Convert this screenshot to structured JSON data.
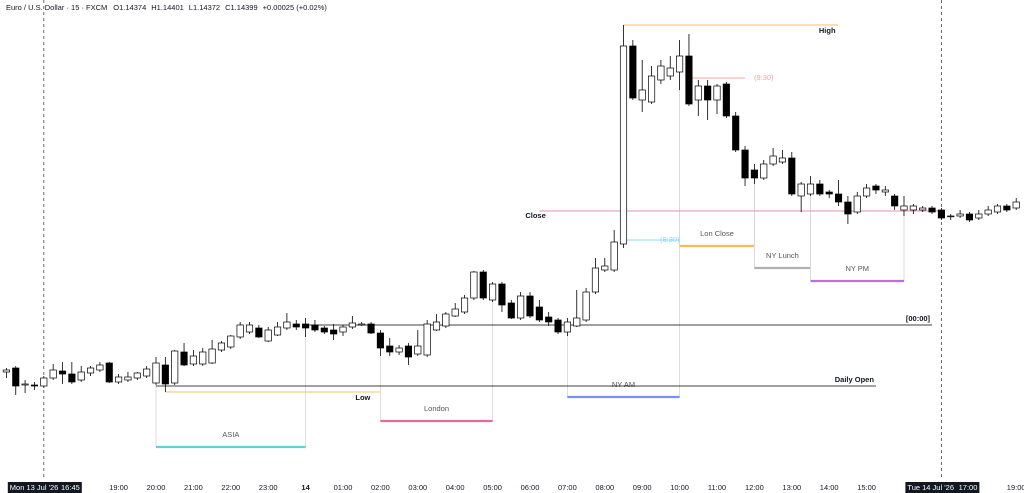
{
  "chart_data": {
    "type": "candlestick",
    "title": "Euro / U.S. Dollar · 15 · FXCM",
    "ohlc": [
      {
        "value": 1.14374,
        "label": "O"
      },
      {
        "value": 1.14401,
        "label": "H"
      },
      {
        "value": 1.14372,
        "label": "L"
      },
      {
        "value": 1.14399,
        "label": "C"
      }
    ],
    "change": "+0.00025 (+0.02%)",
    "ylim": [
      1.1413,
      1.1461
    ],
    "up_color": "#ffffff",
    "down_color": "#000000",
    "wick_color": "#000000",
    "open": [
      1.14238,
      1.14242,
      1.14225,
      1.14225,
      1.14224,
      1.14232,
      1.14239,
      1.14236,
      1.1423,
      1.14237,
      1.1424,
      1.14247,
      1.14228,
      1.1423,
      1.14232,
      1.14234,
      1.14227,
      1.14245,
      1.14227,
      1.14258,
      1.14246,
      1.14246,
      1.14247,
      1.1426,
      1.14263,
      1.14273,
      1.14278,
      1.14282,
      1.14269,
      1.14275,
      1.14282,
      1.14286,
      1.14286,
      1.14285,
      1.14282,
      1.1428,
      1.14278,
      1.14283,
      1.14285,
      1.14286,
      1.14277,
      1.14264,
      1.14258,
      1.14264,
      1.14256,
      1.14255,
      1.1428,
      1.14284,
      1.14294,
      1.14298,
      1.14312,
      1.14338,
      1.1431,
      1.14326,
      1.14307,
      1.14292,
      1.14314,
      1.14303,
      1.14293,
      1.1429,
      1.14278,
      1.14284,
      1.1429,
      1.14318,
      1.1434,
      1.1434,
      1.14366,
      1.14564,
      1.1451,
      1.14508,
      1.1453,
      1.14534,
      1.14538,
      1.14554,
      1.1451,
      1.14524,
      1.1451,
      1.14526,
      1.14494,
      1.1446,
      1.1444,
      1.14432,
      1.14446,
      1.14448,
      1.14452,
      1.14414,
      1.14416,
      1.14426,
      1.14418,
      1.14416,
      1.14408,
      1.14398,
      1.14414,
      1.14424,
      1.14418,
      1.14414,
      1.144,
      1.144,
      1.144,
      1.14402,
      1.144,
      1.14394,
      1.14394,
      1.14396,
      1.14392,
      1.14396,
      1.14398,
      1.14404,
      1.14402
    ],
    "high": [
      1.14242,
      1.14244,
      1.1423,
      1.14228,
      1.14234,
      1.14246,
      1.14248,
      1.14248,
      1.14244,
      1.14244,
      1.14248,
      1.14248,
      1.14236,
      1.14238,
      1.14238,
      1.14244,
      1.14253,
      1.14253,
      1.1426,
      1.14267,
      1.1426,
      1.14262,
      1.1427,
      1.14269,
      1.14275,
      1.14288,
      1.14288,
      1.14285,
      1.14283,
      1.14288,
      1.14297,
      1.1429,
      1.14292,
      1.1429,
      1.14284,
      1.14286,
      1.14285,
      1.14294,
      1.14288,
      1.14288,
      1.1428,
      1.14272,
      1.14265,
      1.14267,
      1.1428,
      1.1429,
      1.14296,
      1.14298,
      1.14307,
      1.14315,
      1.14339,
      1.1434,
      1.14328,
      1.14328,
      1.1431,
      1.14318,
      1.14318,
      1.1431,
      1.14298,
      1.14292,
      1.14292,
      1.1432,
      1.14322,
      1.14352,
      1.14352,
      1.1438,
      1.14585,
      1.1457,
      1.1455,
      1.14544,
      1.1455,
      1.14554,
      1.1457,
      1.14576,
      1.1453,
      1.1453,
      1.14526,
      1.14528,
      1.14498,
      1.14464,
      1.14446,
      1.1445,
      1.14462,
      1.1446,
      1.14458,
      1.14428,
      1.14434,
      1.1443,
      1.1442,
      1.1443,
      1.14414,
      1.14418,
      1.14426,
      1.14426,
      1.14424,
      1.14416,
      1.14414,
      1.14406,
      1.14404,
      1.14404,
      1.14402,
      1.14396,
      1.144,
      1.14398,
      1.144,
      1.14404,
      1.14406,
      1.14406,
      1.14412
    ],
    "low": [
      1.14232,
      1.14215,
      1.14217,
      1.1422,
      1.14222,
      1.1423,
      1.14226,
      1.14226,
      1.14228,
      1.14234,
      1.14238,
      1.14227,
      1.14226,
      1.14228,
      1.1423,
      1.14232,
      1.14225,
      1.14218,
      1.14225,
      1.14244,
      1.14244,
      1.14244,
      1.14246,
      1.14258,
      1.14261,
      1.14271,
      1.14276,
      1.14272,
      1.14268,
      1.14274,
      1.1428,
      1.1428,
      1.14273,
      1.14278,
      1.14276,
      1.1427,
      1.14274,
      1.14281,
      1.14284,
      1.14276,
      1.14254,
      1.14254,
      1.14255,
      1.14245,
      1.14254,
      1.14253,
      1.14279,
      1.14282,
      1.14293,
      1.14296,
      1.1431,
      1.1431,
      1.14308,
      1.14298,
      1.14291,
      1.1429,
      1.14292,
      1.14288,
      1.14284,
      1.14276,
      1.14274,
      1.14283,
      1.14288,
      1.14316,
      1.14338,
      1.14338,
      1.14362,
      1.1451,
      1.14498,
      1.14506,
      1.14526,
      1.1453,
      1.1452,
      1.14504,
      1.14494,
      1.1449,
      1.14496,
      1.14492,
      1.14458,
      1.14424,
      1.14426,
      1.1443,
      1.14444,
      1.14446,
      1.14414,
      1.14398,
      1.14414,
      1.14414,
      1.14412,
      1.14404,
      1.14386,
      1.14396,
      1.14412,
      1.14416,
      1.14414,
      1.144,
      1.14394,
      1.14396,
      1.14398,
      1.14396,
      1.1439,
      1.1439,
      1.14392,
      1.14388,
      1.1439,
      1.14394,
      1.14396,
      1.14398,
      1.144
    ],
    "close": [
      1.1424,
      1.14224,
      1.14226,
      1.14224,
      1.14232,
      1.1424,
      1.14236,
      1.14228,
      1.14238,
      1.14242,
      1.14245,
      1.14228,
      1.14233,
      1.14233,
      1.14237,
      1.14241,
      1.14247,
      1.14226,
      1.14259,
      1.14245,
      1.14254,
      1.14258,
      1.14261,
      1.14267,
      1.14274,
      1.14285,
      1.14285,
      1.14273,
      1.1428,
      1.14283,
      1.14288,
      1.14283,
      1.14282,
      1.1428,
      1.14278,
      1.14276,
      1.14283,
      1.14287,
      1.14286,
      1.14277,
      1.14262,
      1.14258,
      1.14262,
      1.14253,
      1.14264,
      1.14286,
      1.14288,
      1.14296,
      1.14301,
      1.14312,
      1.14338,
      1.14312,
      1.14326,
      1.14305,
      1.14292,
      1.14314,
      1.14294,
      1.1429,
      1.14288,
      1.14278,
      1.14288,
      1.14292,
      1.14318,
      1.14342,
      1.14344,
      1.14368,
      1.14564,
      1.14512,
      1.1452,
      1.14534,
      1.14544,
      1.14542,
      1.14554,
      1.14506,
      1.14524,
      1.1451,
      1.14524,
      1.14494,
      1.1446,
      1.14432,
      1.14432,
      1.14446,
      1.14454,
      1.14452,
      1.14416,
      1.14426,
      1.14426,
      1.14416,
      1.14416,
      1.14408,
      1.14396,
      1.14414,
      1.14422,
      1.1442,
      1.1442,
      1.14404,
      1.14404,
      1.14404,
      1.14402,
      1.14398,
      1.14392,
      1.14394,
      1.14396,
      1.1439,
      1.14396,
      1.144,
      1.14404,
      1.144,
      1.14408
    ],
    "xticks": [
      {
        "value": 12,
        "label": "19:00"
      },
      {
        "value": 16,
        "label": "20:00"
      },
      {
        "value": 20,
        "label": "21:00"
      },
      {
        "value": 24,
        "label": "22:00"
      },
      {
        "value": 28,
        "label": "23:00"
      },
      {
        "value": 32,
        "label": "14"
      },
      {
        "value": 36,
        "label": "01:00"
      },
      {
        "value": 40,
        "label": "02:00"
      },
      {
        "value": 44,
        "label": "03:00"
      },
      {
        "value": 48,
        "label": "04:00"
      },
      {
        "value": 52,
        "label": "05:00"
      },
      {
        "value": 56,
        "label": "06:00"
      },
      {
        "value": 60,
        "label": "07:00"
      },
      {
        "value": 64,
        "label": "08:00"
      },
      {
        "value": 68,
        "label": "09:00"
      },
      {
        "value": 72,
        "label": "10:00"
      },
      {
        "value": 76,
        "label": "11:00"
      },
      {
        "value": 80,
        "label": "12:00"
      },
      {
        "value": 84,
        "label": "13:00"
      },
      {
        "value": 88,
        "label": "14:00"
      },
      {
        "value": 92,
        "label": "15:00"
      },
      {
        "value": 108,
        "label": "19:00"
      }
    ],
    "cursors": [
      {
        "index": 4,
        "date": "Mon 13 Jul '26",
        "time": "16:45"
      },
      {
        "index": 100,
        "date": "Tue 14 Jul '26",
        "time": "17:00"
      }
    ],
    "levels": [
      {
        "name": "High",
        "value": 1.14585,
        "start": 66,
        "end": 89,
        "color": "#f5c16c"
      },
      {
        "name": "Low",
        "value": 1.14218,
        "start": 17,
        "end": 40,
        "color": "#f5c16c"
      },
      {
        "name": "Close",
        "value": 1.14399,
        "start": 57,
        "end": 100,
        "color": "#e58fb2"
      },
      {
        "name": "Daily Open",
        "value": 1.14224,
        "start": 16,
        "end": 93,
        "color": "#000000"
      },
      {
        "name": "[00:00]",
        "value": 1.14285,
        "start": 32,
        "end": 99,
        "color": "#000000"
      },
      {
        "name": "(9:30)",
        "value": 1.14532,
        "start": 73,
        "end": 79,
        "color": "#f2a3a3"
      },
      {
        "name": "(8:30)",
        "value": 1.1437,
        "start": 66,
        "end": 72,
        "color": "#8fd8ea"
      }
    ],
    "sessions": [
      {
        "name": "ASIA",
        "start": 16,
        "end": 32,
        "color": "#5fd0e0"
      },
      {
        "name": "London",
        "start": 40,
        "end": 52,
        "color": "#e8699a"
      },
      {
        "name": "NY AM",
        "start": 60,
        "end": 72,
        "color": "#7b8ff0"
      },
      {
        "name": "Lon Close",
        "start": 72,
        "end": 80,
        "color": "#f5b95f"
      },
      {
        "name": "NY Lunch",
        "start": 80,
        "end": 86,
        "color": "#b0b0b0"
      },
      {
        "name": "NY PM",
        "start": 86,
        "end": 96,
        "color": "#b873d6"
      }
    ]
  }
}
